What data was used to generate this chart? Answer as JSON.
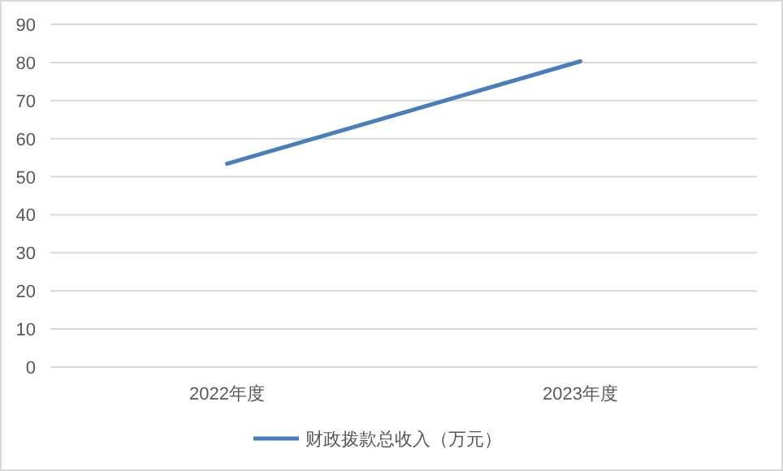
{
  "chart_data": {
    "type": "line",
    "categories": [
      "2022年度",
      "2023年度"
    ],
    "series": [
      {
        "name": "财政拨款总收入（万元）",
        "color": "#4a7ebb",
        "values": [
          53.4,
          80.3
        ]
      }
    ],
    "ylim": [
      0,
      90
    ],
    "yticks": [
      0,
      10,
      20,
      30,
      40,
      50,
      60,
      70,
      80,
      90
    ],
    "grid": "y",
    "legend": "bottom",
    "marker": "none",
    "line_style": "solid"
  }
}
